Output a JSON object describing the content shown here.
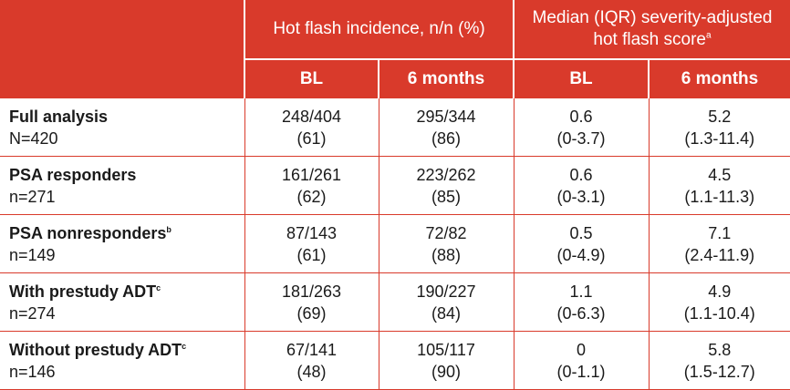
{
  "header": {
    "group1": "Hot flash incidence, n/n (%)",
    "group2": "Median (IQR) severity-adjusted hot flash score",
    "group2_sup": "a",
    "sub": [
      "BL",
      "6 months",
      "BL",
      "6 months"
    ]
  },
  "rows": [
    {
      "name": "Full analysis",
      "sup": "",
      "n": "N=420",
      "inc_bl": [
        "248/404",
        "(61)"
      ],
      "inc_6m": [
        "295/344",
        "(86)"
      ],
      "sev_bl": [
        "0.6",
        "(0-3.7)"
      ],
      "sev_6m": [
        "5.2",
        "(1.3-11.4)"
      ]
    },
    {
      "name": "PSA responders",
      "sup": "",
      "n": "n=271",
      "inc_bl": [
        "161/261",
        "(62)"
      ],
      "inc_6m": [
        "223/262",
        "(85)"
      ],
      "sev_bl": [
        "0.6",
        "(0-3.1)"
      ],
      "sev_6m": [
        "4.5",
        "(1.1-11.3)"
      ]
    },
    {
      "name": "PSA nonresponders",
      "sup": "b",
      "n": "n=149",
      "inc_bl": [
        "87/143",
        "(61)"
      ],
      "inc_6m": [
        "72/82",
        "(88)"
      ],
      "sev_bl": [
        "0.5",
        "(0-4.9)"
      ],
      "sev_6m": [
        "7.1",
        "(2.4-11.9)"
      ]
    },
    {
      "name": "With prestudy ADT",
      "sup": "c",
      "n": "n=274",
      "inc_bl": [
        "181/263",
        "(69)"
      ],
      "inc_6m": [
        "190/227",
        "(84)"
      ],
      "sev_bl": [
        "1.1",
        "(0-6.3)"
      ],
      "sev_6m": [
        "4.9",
        "(1.1-10.4)"
      ]
    },
    {
      "name": "Without prestudy ADT",
      "sup": "c",
      "n": "n=146",
      "inc_bl": [
        "67/141",
        "(48)"
      ],
      "inc_6m": [
        "105/117",
        "(90)"
      ],
      "sev_bl": [
        "0",
        "(0-1.1)"
      ],
      "sev_6m": [
        "5.8",
        "(1.5-12.7)"
      ]
    }
  ]
}
